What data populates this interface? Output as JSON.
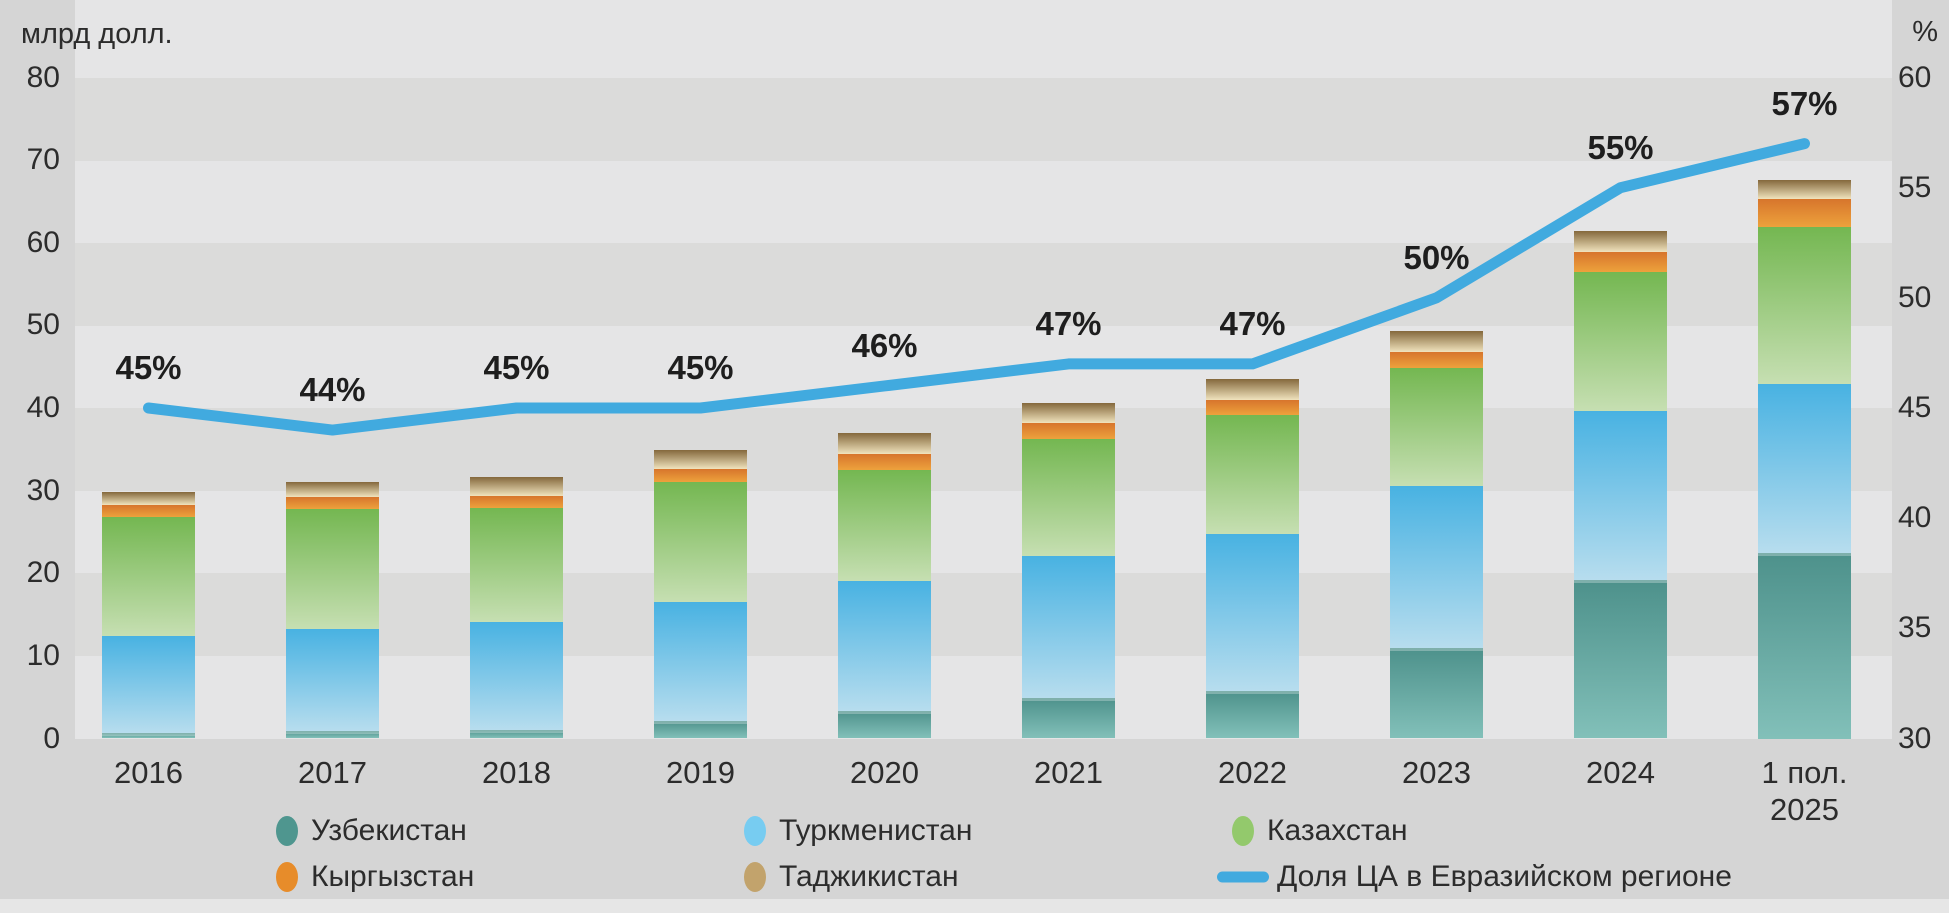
{
  "page": {
    "background": "#d5d5d5",
    "stripe_light": "#e5e5e6",
    "stripe_dark": "#dbdbda",
    "bottom_strip_color": "#e6e6e6",
    "text_color": "#2c2c2c"
  },
  "axes": {
    "left": {
      "title": "млрд долл.",
      "ticks": [
        "80",
        "70",
        "60",
        "50",
        "40",
        "30",
        "20",
        "10",
        "0"
      ]
    },
    "right": {
      "title": "%",
      "ticks": [
        "60",
        "55",
        "50",
        "45",
        "40",
        "35",
        "30"
      ]
    }
  },
  "chart_data": {
    "type": "stacked-bar + line",
    "title": "",
    "categories": [
      "2016",
      "2017",
      "2018",
      "2019",
      "2020",
      "2021",
      "2022",
      "2023",
      "2024",
      "1 пол.\n2025"
    ],
    "ylabel_left": "млрд долл.",
    "ylabel_right": "%",
    "ylim_left": [
      0,
      80
    ],
    "ylim_right": [
      30,
      60
    ],
    "grid": "horizontal alternating bands every 10 units of left axis",
    "legend_position": "bottom",
    "series": [
      {
        "name": "Узбекистан",
        "role": "bar-bottom-stack",
        "values": [
          0.7,
          0.9,
          1.0,
          2.1,
          3.3,
          4.9,
          5.8,
          10.9,
          19.2,
          22.5
        ],
        "color_top": "#4d918b",
        "color_bottom": "#82c0b9",
        "legend_color": "#4f968f",
        "cap": true
      },
      {
        "name": "Туркменистан",
        "role": "bar-stack",
        "values": [
          11.7,
          12.4,
          13.1,
          14.4,
          15.8,
          17.2,
          18.9,
          19.7,
          20.4,
          20.4
        ],
        "color_top": "#48b2e2",
        "color_bottom": "#b7ddee",
        "legend_color": "#77ccf1",
        "cap": false
      },
      {
        "name": "Казахстан",
        "role": "bar-stack",
        "values": [
          14.4,
          14.5,
          13.8,
          14.5,
          13.4,
          14.1,
          14.4,
          14.2,
          16.8,
          19.0
        ],
        "color_top": "#74b751",
        "color_bottom": "#c6dfb2",
        "legend_color": "#93c96c",
        "cap": false
      },
      {
        "name": "Кыргызстан",
        "role": "bar-stack",
        "values": [
          1.5,
          1.4,
          1.5,
          1.6,
          1.9,
          2.0,
          1.9,
          2.0,
          2.5,
          3.4
        ],
        "color_top": "#d7752c",
        "color_bottom": "#eda23c",
        "legend_color": "#e78c2a",
        "cap": false
      },
      {
        "name": "Таджикистан",
        "role": "bar-top-stack",
        "values": [
          1.5,
          1.8,
          2.2,
          2.3,
          2.6,
          2.4,
          2.5,
          2.5,
          2.5,
          2.3
        ],
        "color_top": "#84683c",
        "color_bottom": "#f0e3bd",
        "legend_color": "#c2a36c",
        "cap": false
      }
    ],
    "bar_totals": [
      29.8,
      31.0,
      31.6,
      34.9,
      37.0,
      40.6,
      43.5,
      49.3,
      61.4,
      67.6
    ],
    "line_series": {
      "name": "Доля ЦА в Евразийском регионе",
      "axis": "right",
      "color": "#41aadf",
      "values": [
        45,
        44,
        45,
        45,
        46,
        47,
        47,
        50,
        55,
        57
      ],
      "labels": [
        "45%",
        "44%",
        "45%",
        "45%",
        "46%",
        "47%",
        "47%",
        "50%",
        "55%",
        "57%"
      ]
    }
  },
  "legend": {
    "rows": [
      [
        {
          "swatch": "circle",
          "color": "#4f968f",
          "label": "Узбекистан"
        },
        {
          "swatch": "circle",
          "color": "#77ccf1",
          "label": "Туркменистан"
        },
        {
          "swatch": "circle",
          "color": "#93c96c",
          "label": "Казахстан"
        }
      ],
      [
        {
          "swatch": "circle",
          "color": "#e78c2a",
          "label": "Кыргызстан"
        },
        {
          "swatch": "circle",
          "color": "#c2a36c",
          "label": "Таджикистан"
        },
        {
          "swatch": "line",
          "color": "#41aadf",
          "label": "Доля ЦА в Евразийском регионе"
        }
      ]
    ]
  }
}
